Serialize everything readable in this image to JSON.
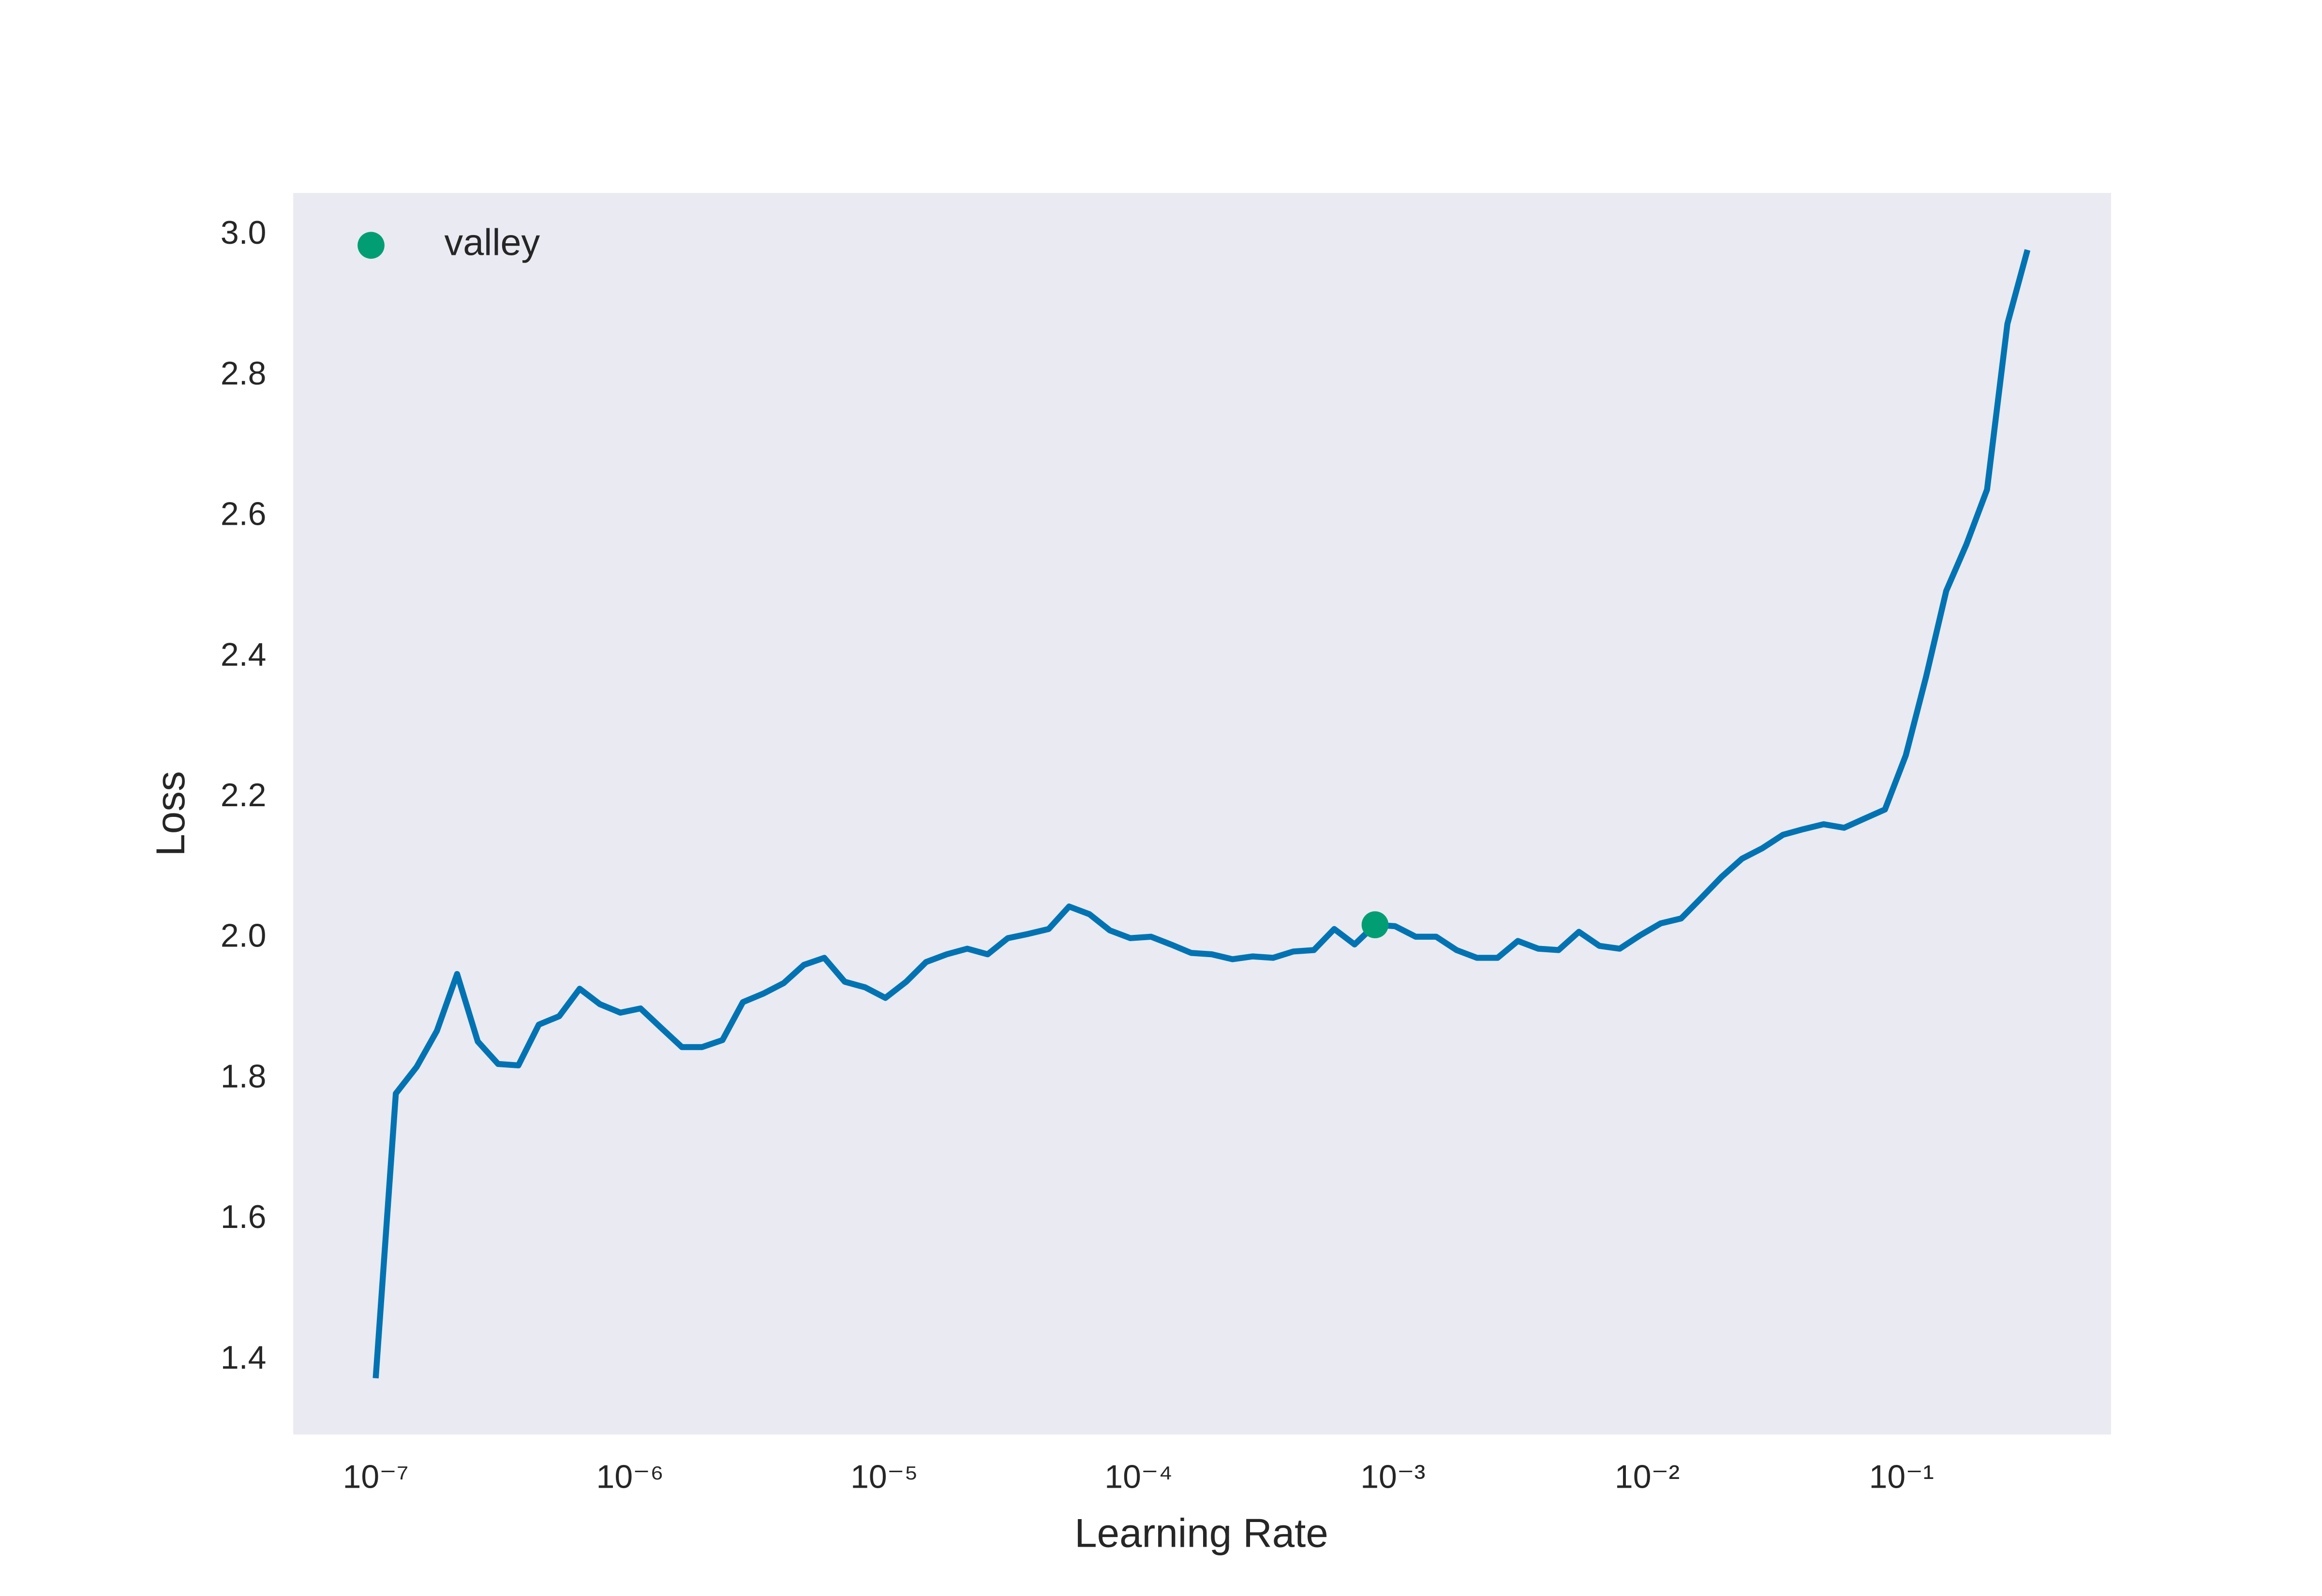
{
  "chart_data": {
    "type": "line",
    "xlabel": "Learning Rate",
    "ylabel": "Loss",
    "xscale": "log",
    "grid": false,
    "legend": "upper left",
    "color": "#0173b2",
    "x": [
      1e-07,
      1.2e-07,
      1.45e-07,
      1.74e-07,
      2.09e-07,
      2.52e-07,
      3.03e-07,
      3.64e-07,
      4.38e-07,
      5.27e-07,
      6.34e-07,
      7.62e-07,
      9.17e-07,
      1.1e-06,
      1.33e-06,
      1.6e-06,
      1.92e-06,
      2.31e-06,
      2.78e-06,
      3.34e-06,
      4.02e-06,
      4.83e-06,
      5.81e-06,
      6.99e-06,
      8.41e-06,
      1.01e-05,
      1.22e-05,
      1.46e-05,
      1.76e-05,
      2.12e-05,
      2.55e-05,
      3.06e-05,
      3.68e-05,
      4.43e-05,
      5.33e-05,
      6.41e-05,
      7.71e-05,
      9.28e-05,
      0.000112,
      0.000134,
      0.000161,
      0.000194,
      0.000234,
      0.000281,
      0.000338,
      0.000406,
      0.000489,
      0.000588,
      0.000707,
      0.000851,
      0.00102,
      0.00123,
      0.00148,
      0.00178,
      0.00214,
      0.00258,
      0.0031,
      0.00373,
      0.00448,
      0.00539,
      0.00649,
      0.0078,
      0.00938,
      0.0113,
      0.0136,
      0.0163,
      0.0196,
      0.0236,
      0.0284,
      0.0342,
      0.0411,
      0.0494,
      0.0595,
      0.0715,
      0.0861,
      0.104,
      0.125,
      0.15,
      0.18,
      0.217,
      0.261,
      0.313
    ],
    "values": [
      1.374,
      1.779,
      1.817,
      1.868,
      1.949,
      1.853,
      1.821,
      1.819,
      1.877,
      1.889,
      1.928,
      1.906,
      1.894,
      1.9,
      1.872,
      1.845,
      1.845,
      1.855,
      1.909,
      1.921,
      1.936,
      1.962,
      1.972,
      1.938,
      1.93,
      1.915,
      1.938,
      1.966,
      1.977,
      1.985,
      1.977,
      2.0,
      2.006,
      2.013,
      2.045,
      2.034,
      2.011,
      2.0,
      2.002,
      1.991,
      1.979,
      1.977,
      1.97,
      1.974,
      1.972,
      1.981,
      1.983,
      2.013,
      1.991,
      2.019,
      2.017,
      2.002,
      2.002,
      1.983,
      1.972,
      1.972,
      1.996,
      1.985,
      1.983,
      2.009,
      1.989,
      1.985,
      2.004,
      2.021,
      2.028,
      2.057,
      2.087,
      2.113,
      2.128,
      2.147,
      2.155,
      2.162,
      2.157,
      2.17,
      2.183,
      2.26,
      2.372,
      2.494,
      2.56,
      2.638,
      2.874,
      2.979
    ],
    "markers": [
      {
        "name": "valley",
        "x": 0.000851,
        "value": 2.019,
        "color": "#029e73"
      }
    ],
    "xlim": [
      4.74e-08,
      0.667
    ],
    "ylim": [
      1.294,
      3.06
    ],
    "xticks": [
      {
        "value": 1e-07,
        "label": "10⁻⁷"
      },
      {
        "value": 1e-06,
        "label": "10⁻⁶"
      },
      {
        "value": 1e-05,
        "label": "10⁻⁵"
      },
      {
        "value": 0.0001,
        "label": "10⁻⁴"
      },
      {
        "value": 0.001,
        "label": "10⁻³"
      },
      {
        "value": 0.01,
        "label": "10⁻²"
      },
      {
        "value": 0.1,
        "label": "10⁻¹"
      }
    ],
    "yticks": [
      1.4,
      1.6,
      1.8,
      {
        "value": 2,
        "label": "2.0"
      },
      2.2,
      2.4,
      2.6,
      2.8,
      {
        "value": 3,
        "label": "3.0"
      }
    ]
  }
}
